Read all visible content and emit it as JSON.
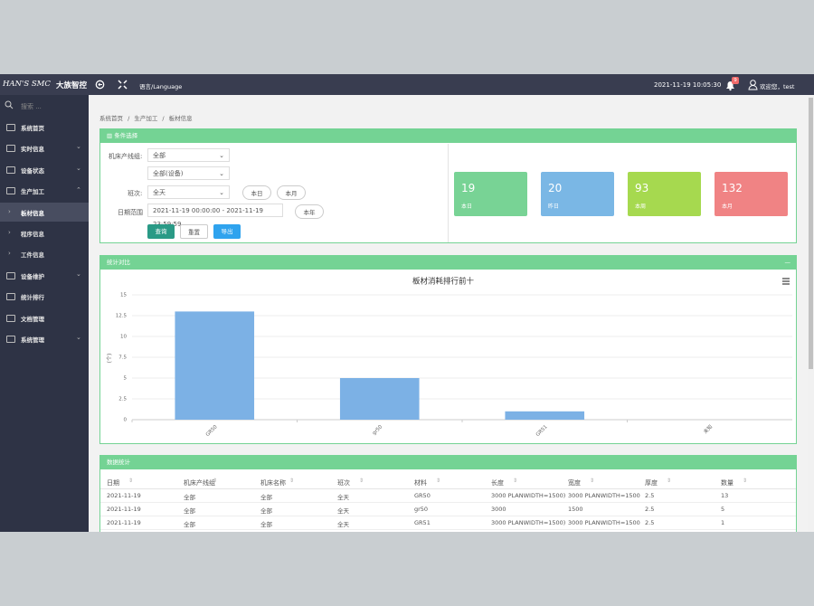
{
  "header": {
    "brand": "HAN'S SMC",
    "brand_cn": "大族智控",
    "language": "语言/Language",
    "datetime": "2021-11-19 10:05:30",
    "badge": "9",
    "welcome": "欢迎您，test"
  },
  "sidebar": {
    "search": "搜索 ...",
    "items": [
      {
        "label": "系统首页"
      },
      {
        "label": "实时信息",
        "collapsible": true
      },
      {
        "label": "设备状态",
        "collapsible": true
      },
      {
        "label": "生产加工",
        "collapsible": true,
        "children": [
          "板材信息",
          "程序信息",
          "工件信息"
        ],
        "active_child": 0
      },
      {
        "label": "设备维护",
        "collapsible": true
      },
      {
        "label": "统计排行"
      },
      {
        "label": "文档管理"
      },
      {
        "label": "系统管理",
        "collapsible": true
      }
    ]
  },
  "breadcrumb": [
    "系统首页",
    "生产加工",
    "板材信息"
  ],
  "filter": {
    "title": "条件选择",
    "line_label": "机床产线组:",
    "line_value": "全部",
    "device_value": "全部(设备)",
    "shift_label": "班次:",
    "shift_value": "全天",
    "today": "本日",
    "month": "本月",
    "date_label": "日期范围",
    "date_value": "2021-11-19 00:00:00 - 2021-11-19 23:59:59",
    "year": "本年",
    "query": "查询",
    "reset": "重置",
    "export": "导出"
  },
  "cards": [
    {
      "value": 19,
      "label": "本日",
      "color": "#78d395"
    },
    {
      "value": 20,
      "label": "昨日",
      "color": "#7ab7e5"
    },
    {
      "value": 93,
      "label": "本周",
      "color": "#a6d94f"
    },
    {
      "value": 132,
      "label": "本月",
      "color": "#f08384"
    }
  ],
  "chart_panel": {
    "title": "统计对比",
    "collapse": "—",
    "chart": {
      "type": "bar",
      "title": "板材消耗排行前十",
      "y_label": "(个)",
      "categories": [
        "GR50",
        "gr50",
        "GR51",
        "未知"
      ],
      "values": [
        13,
        5,
        1,
        0
      ],
      "color": "#7cb1e5",
      "ylim": [
        0,
        15
      ],
      "yticks": [
        0,
        2.5,
        5,
        7.5,
        10,
        12.5,
        15
      ],
      "grid": true
    }
  },
  "table": {
    "title": "数据统计",
    "headers": [
      "日期",
      "机床产线组",
      "机床名称",
      "班次",
      "材料",
      "长度",
      "宽度",
      "厚度",
      "数量"
    ],
    "rows": [
      [
        "2021-11-19",
        "全部",
        "全部",
        "全天",
        "GR50",
        "3000 PLANWIDTH=1500)",
        "3000 PLANWIDTH=1500",
        "2.5",
        "13"
      ],
      [
        "2021-11-19",
        "全部",
        "全部",
        "全天",
        "gr50",
        "3000",
        "1500",
        "2.5",
        "5"
      ],
      [
        "2021-11-19",
        "全部",
        "全部",
        "全天",
        "GR51",
        "3000 PLANWIDTH=1500)",
        "3000 PLANWIDTH=1500",
        "2.5",
        "1"
      ]
    ]
  }
}
